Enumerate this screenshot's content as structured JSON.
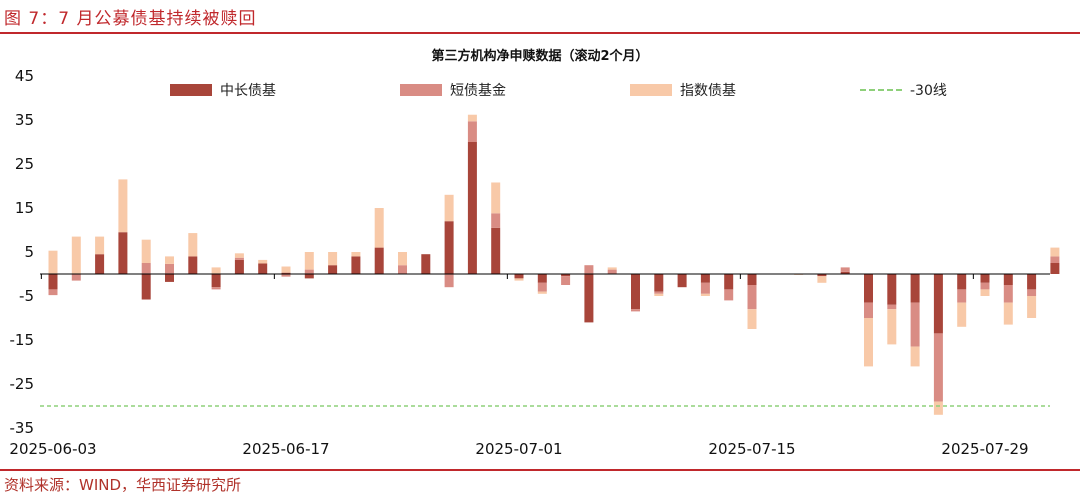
{
  "figure": {
    "title": "图 7：7 月公募债基持续被赎回",
    "source": "资料来源：WIND，华西证券研究所"
  },
  "colors": {
    "long_bond": "#a8453a",
    "short_bond": "#d98c84",
    "index_bond": "#f8c9a8",
    "threshold": "#8ed07a",
    "brand_red": "#c0282c"
  },
  "chart_data": {
    "type": "bar",
    "stacked": true,
    "title": "第三方机构净申赎数据（滚动2个月）",
    "xlabel": "",
    "ylabel": "",
    "ylim": [
      -35,
      45
    ],
    "yticks": [
      45,
      35,
      25,
      15,
      5,
      -5,
      -15,
      -25,
      -35
    ],
    "xtick_labels": [
      "2025-06-03",
      "2025-06-17",
      "2025-07-01",
      "2025-07-15",
      "2025-07-29"
    ],
    "legend": [
      "中长债基",
      "短债基金",
      "指数债基",
      "-30线"
    ],
    "legend_position": "top",
    "grid": false,
    "threshold_line": {
      "name": "-30线",
      "value": -30,
      "style": "dashed"
    },
    "categories": [
      "06-03",
      "06-04",
      "06-05",
      "06-06",
      "06-09",
      "06-10",
      "06-11",
      "06-12",
      "06-13",
      "06-16",
      "06-17",
      "06-18",
      "06-19",
      "06-20",
      "06-23",
      "06-24",
      "06-25",
      "06-26",
      "06-27",
      "06-30",
      "07-01",
      "07-02",
      "07-03",
      "07-04",
      "07-07",
      "07-08",
      "07-09",
      "07-10",
      "07-11",
      "07-14",
      "07-15",
      "07-16",
      "07-17",
      "07-18",
      "07-21",
      "07-22",
      "07-23",
      "07-24",
      "07-25",
      "07-28",
      "07-29",
      "07-30",
      "07-31",
      "08-01"
    ],
    "series": [
      {
        "name": "中长债基",
        "values": [
          -3.5,
          0.0,
          4.5,
          9.5,
          -5.8,
          -1.8,
          4.0,
          -3.0,
          3.2,
          2.4,
          0.3,
          -1.0,
          2.0,
          4.0,
          6.0,
          0.0,
          4.5,
          12.0,
          30.0,
          10.5,
          -1.0,
          -2.0,
          -0.5,
          -11.0,
          0.0,
          -8.0,
          -4.0,
          -3.0,
          -2.0,
          -3.5,
          -2.5,
          0.0,
          0.0,
          -0.5,
          0.5,
          -6.5,
          -7.0,
          -6.5,
          -13.5,
          -3.5,
          -2.0,
          -2.5,
          -3.5,
          2.5
        ]
      },
      {
        "name": "短债基金",
        "values": [
          -1.3,
          -1.5,
          0.0,
          0.0,
          2.5,
          2.3,
          0.0,
          -0.5,
          0.5,
          0.0,
          -0.6,
          1.0,
          0.0,
          0.0,
          0.0,
          2.0,
          0.0,
          -3.0,
          4.7,
          3.3,
          0.0,
          -2.0,
          -2.0,
          2.0,
          1.0,
          -0.5,
          -0.5,
          0.0,
          -2.5,
          -2.5,
          -5.5,
          0.0,
          0.0,
          0.0,
          1.0,
          -3.5,
          -1.0,
          -10.0,
          -15.5,
          -3.0,
          -1.5,
          -4.0,
          -1.5,
          1.5
        ]
      },
      {
        "name": "指数债基",
        "values": [
          5.3,
          8.5,
          4.0,
          12.0,
          5.3,
          1.7,
          5.3,
          1.5,
          1.0,
          0.8,
          1.4,
          4.0,
          3.0,
          1.0,
          9.0,
          3.0,
          0.0,
          6.0,
          1.5,
          7.0,
          -0.5,
          -0.5,
          0.0,
          0.0,
          0.5,
          0.0,
          -0.5,
          0.0,
          -0.5,
          0.0,
          -4.5,
          0.0,
          -0.2,
          -1.5,
          0.0,
          -11.0,
          -8.0,
          -4.5,
          -3.0,
          -5.5,
          -1.5,
          -5.0,
          -5.0,
          2.0
        ]
      }
    ]
  }
}
